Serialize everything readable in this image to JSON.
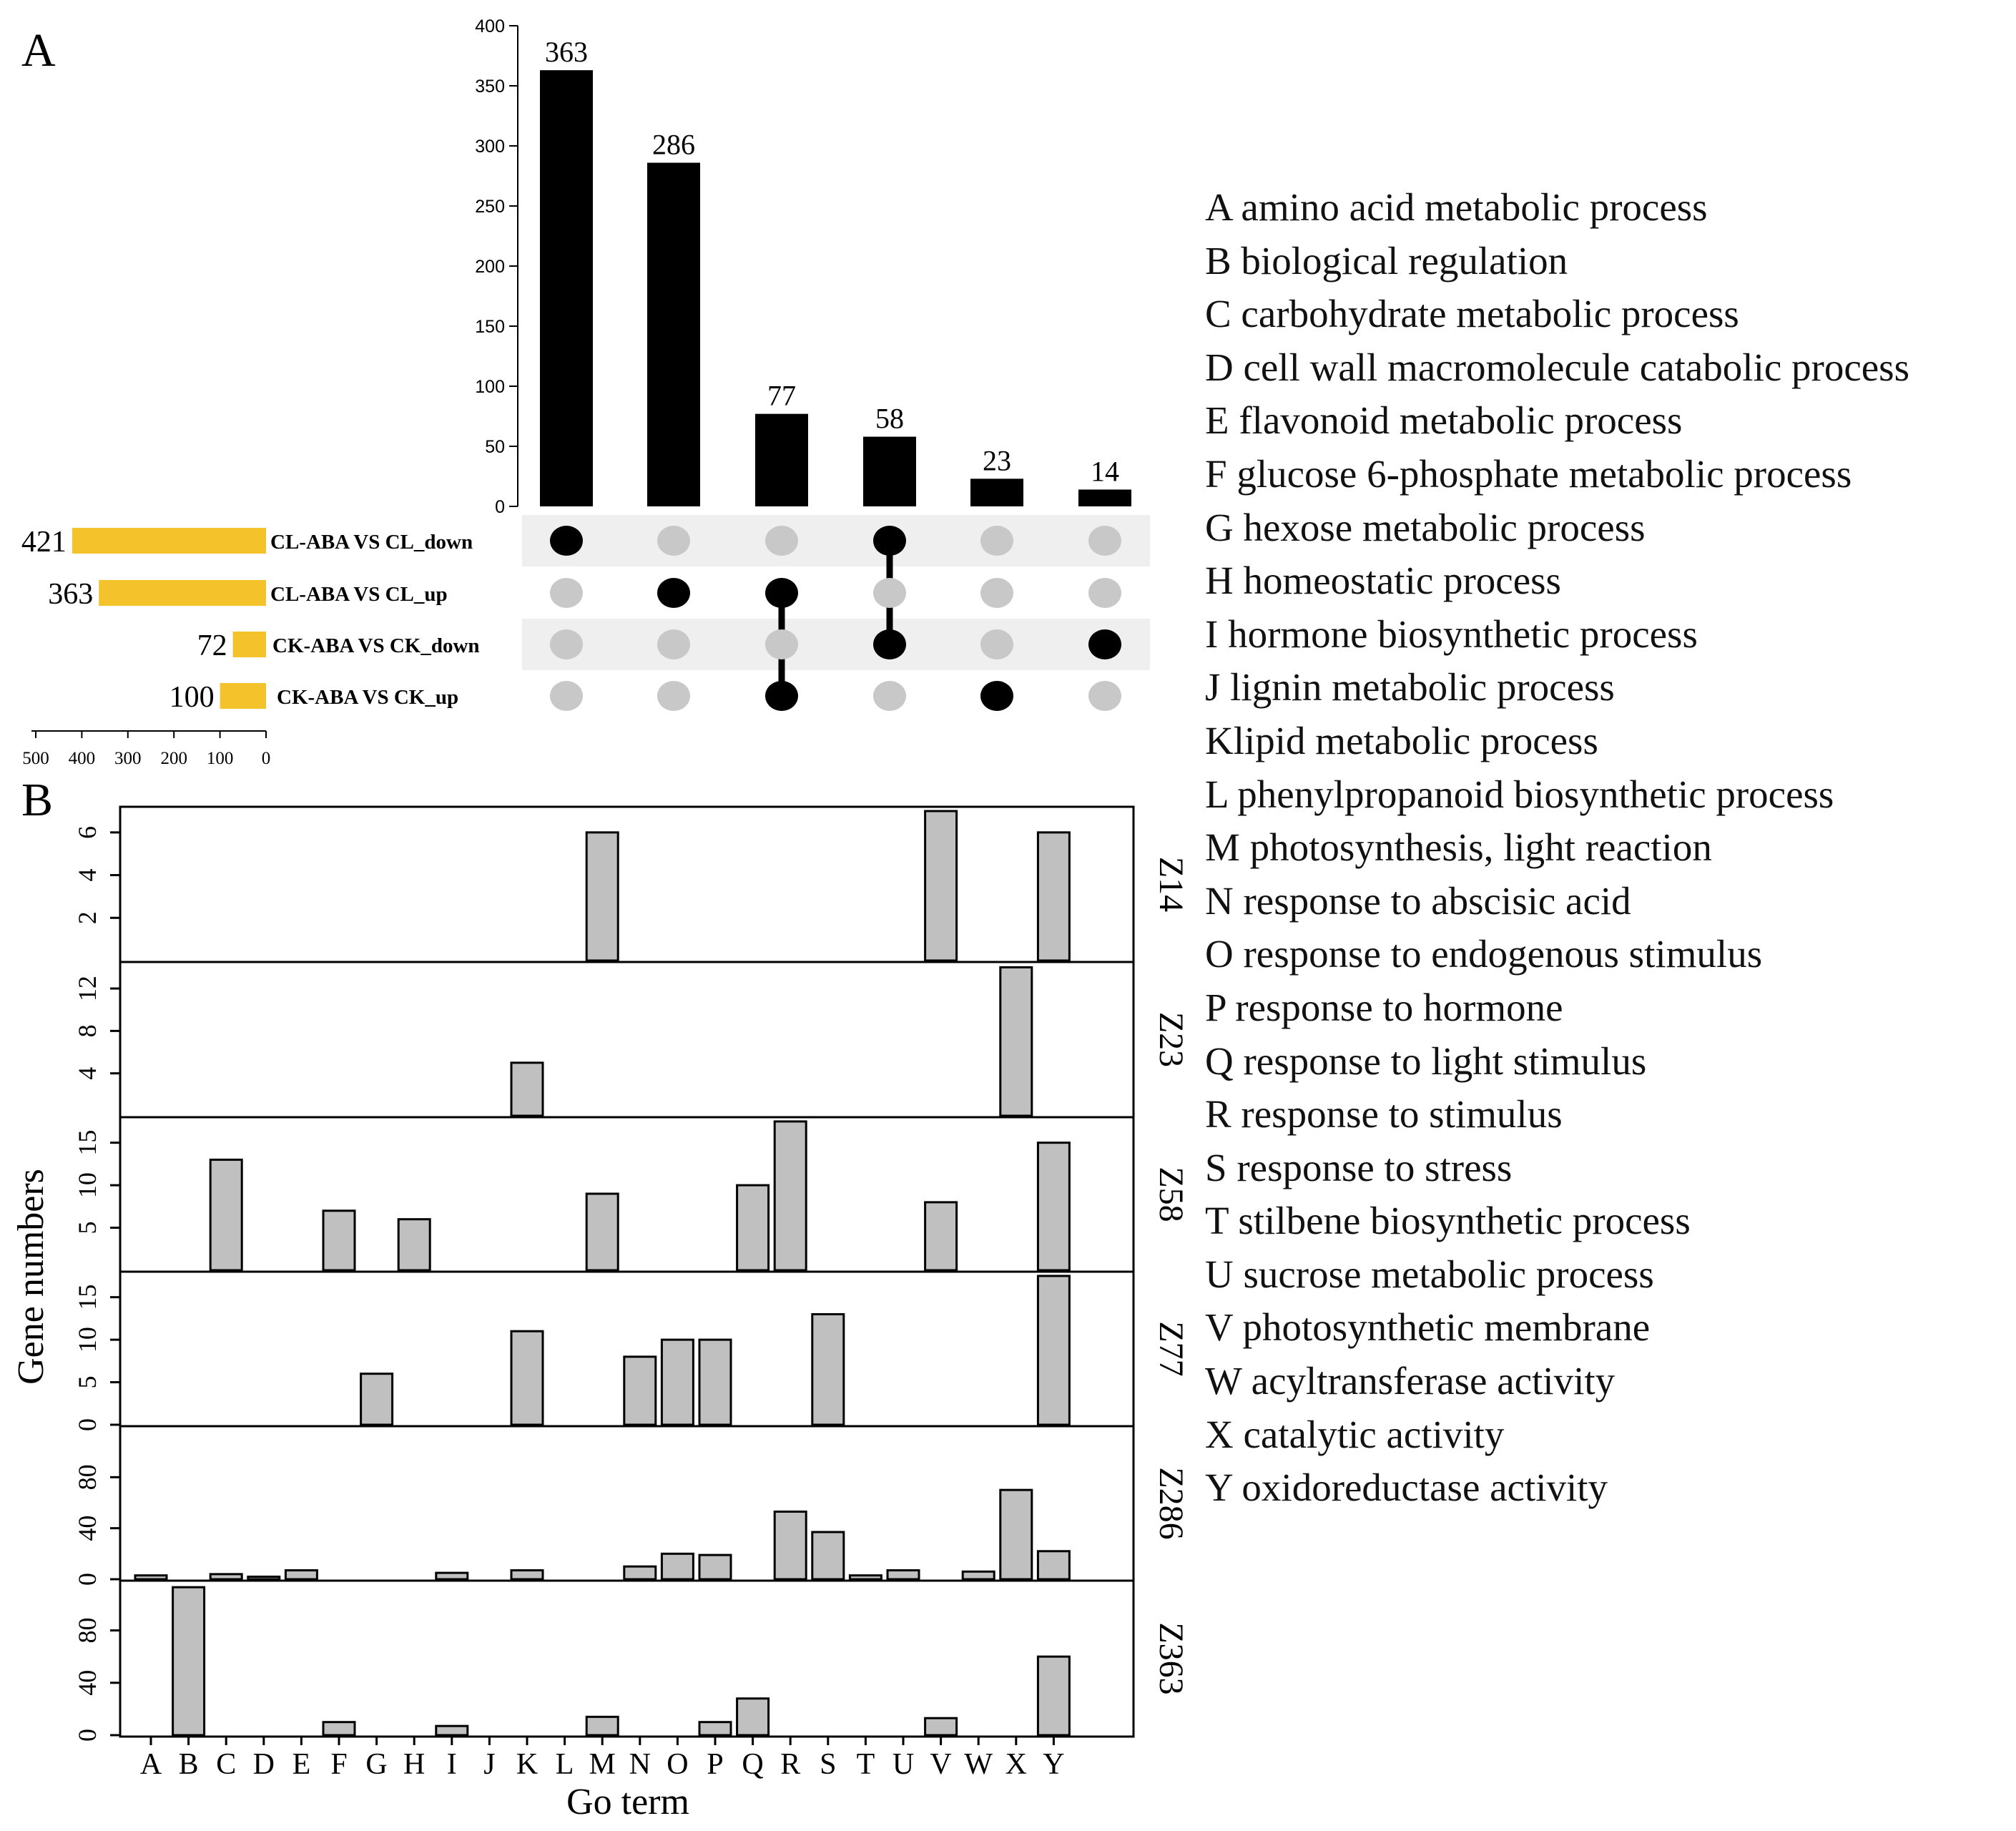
{
  "panel_a_label": "A",
  "panel_b_label": "B",
  "colors": {
    "bar": "#000000",
    "set_bar": "#f4c22a",
    "dot_off": "#c8c8c8",
    "stripe": "#efefef",
    "go_bar": "#c0c0c0"
  },
  "chart_data": [
    {
      "type": "bar",
      "panel": "A-intersections",
      "title": "",
      "ylim": [
        0,
        400
      ],
      "yticks": [
        0,
        50,
        100,
        150,
        200,
        250,
        300,
        350,
        400
      ],
      "values": [
        363,
        286,
        77,
        58,
        23,
        14
      ],
      "data_labels": [
        "363",
        "286",
        "77",
        "58",
        "23",
        "14"
      ],
      "membership": [
        [
          "CL-ABA VS CL_down"
        ],
        [
          "CL-ABA VS CL_up"
        ],
        [
          "CL-ABA VS CL_up",
          "CK-ABA VS CK_up"
        ],
        [
          "CL-ABA VS CL_down",
          "CK-ABA VS CK_down"
        ],
        [
          "CK-ABA VS CK_up"
        ],
        [
          "CK-ABA VS CK_down"
        ]
      ]
    },
    {
      "type": "bar",
      "panel": "A-set-sizes",
      "orientation": "horizontal",
      "sets": [
        "CL-ABA VS CL_down",
        "CL-ABA VS CL_up",
        "CK-ABA VS CK_down",
        "CK-ABA VS CK_up"
      ],
      "values": [
        421,
        363,
        72,
        100
      ],
      "data_labels": [
        "421",
        "363",
        "72",
        "100"
      ],
      "xlim": [
        500,
        0
      ],
      "xticks": [
        "500",
        "400",
        "300",
        "200",
        "100",
        "0"
      ]
    },
    {
      "type": "bar",
      "panel": "B",
      "xlabel": "Go term",
      "ylabel": "Gene numbers",
      "categories": [
        "A",
        "B",
        "C",
        "D",
        "E",
        "F",
        "G",
        "H",
        "I",
        "J",
        "K",
        "L",
        "M",
        "N",
        "O",
        "P",
        "Q",
        "R",
        "S",
        "T",
        "U",
        "V",
        "W",
        "X",
        "Y"
      ],
      "series": [
        {
          "name": "Z14",
          "ylim": [
            0,
            7.2
          ],
          "yticks": [
            "2",
            "4",
            "6"
          ],
          "values": [
            0,
            0,
            0,
            0,
            0,
            0,
            0,
            0,
            0,
            0,
            0,
            0,
            6,
            0,
            0,
            0,
            0,
            0,
            0,
            0,
            0,
            7,
            0,
            0,
            6
          ]
        },
        {
          "name": "Z23",
          "ylim": [
            0,
            14.5
          ],
          "yticks": [
            "4",
            "8",
            "12"
          ],
          "values": [
            0,
            0,
            0,
            0,
            0,
            0,
            0,
            0,
            0,
            0,
            5,
            0,
            0,
            0,
            0,
            0,
            0,
            0,
            0,
            0,
            0,
            0,
            0,
            14,
            0
          ]
        },
        {
          "name": "Z58",
          "ylim": [
            0,
            18
          ],
          "yticks": [
            "5",
            "10",
            "15"
          ],
          "values": [
            0,
            0,
            13,
            0,
            0,
            7,
            0,
            6,
            0,
            0,
            0,
            0,
            9,
            0,
            0,
            0,
            10,
            17.5,
            0,
            0,
            0,
            8,
            0,
            0,
            15
          ]
        },
        {
          "name": "Z77",
          "ylim": [
            0,
            18
          ],
          "yticks": [
            "0",
            "5",
            "10",
            "15"
          ],
          "values": [
            0,
            0,
            0,
            0,
            0,
            0,
            6,
            0,
            0,
            0,
            11,
            0,
            0,
            8,
            10,
            10,
            0,
            0,
            13,
            0,
            0,
            0,
            0,
            0,
            17.5
          ]
        },
        {
          "name": "Z286",
          "ylim": [
            0,
            120
          ],
          "yticks": [
            "0",
            "40",
            "80"
          ],
          "values": [
            3,
            0,
            4,
            2,
            7,
            0,
            0,
            0,
            5,
            0,
            7,
            0,
            0,
            10,
            20,
            19,
            0,
            53,
            37,
            3,
            7,
            0,
            6,
            70,
            22
          ]
        },
        {
          "name": "Z363",
          "ylim": [
            0,
            118
          ],
          "yticks": [
            "0",
            "40",
            "80"
          ],
          "values": [
            0,
            113,
            0,
            0,
            0,
            10,
            0,
            0,
            7,
            0,
            0,
            0,
            14,
            0,
            0,
            10,
            28,
            0,
            0,
            0,
            0,
            13,
            0,
            0,
            60
          ]
        }
      ]
    }
  ],
  "legend": [
    "A amino acid metabolic process",
    "B biological regulation",
    "C carbohydrate metabolic process",
    "D cell wall macromolecule catabolic process",
    "E flavonoid metabolic process",
    "F glucose 6-phosphate metabolic process",
    "G hexose metabolic process",
    "H homeostatic process",
    "I hormone biosynthetic process",
    "J lignin metabolic process",
    "Klipid metabolic process",
    "L phenylpropanoid biosynthetic process",
    "M photosynthesis, light reaction",
    "N response to abscisic acid",
    "O response to endogenous stimulus",
    "P response to hormone",
    "Q response to light stimulus",
    "R response to stimulus",
    "S response to stress",
    "T stilbene biosynthetic process",
    "U sucrose metabolic process",
    "V photosynthetic membrane",
    "W acyltransferase activity",
    "X catalytic activity",
    "Y oxidoreductase activity"
  ]
}
